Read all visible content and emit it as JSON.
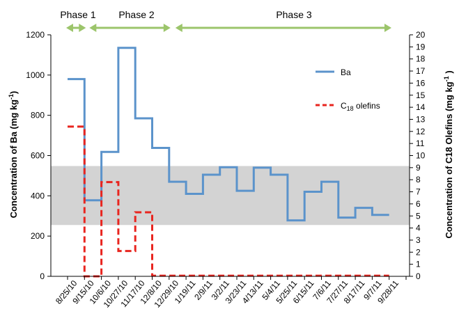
{
  "chart_data": {
    "type": "line",
    "step": true,
    "categories": [
      "8/25/10",
      "9/15/10",
      "10/6/10",
      "10/27/10",
      "11/17/10",
      "12/8/10",
      "12/29/10",
      "1/19/11",
      "2/9/11",
      "3/2/11",
      "3/23/11",
      "4/13/11",
      "5/4/11",
      "5/25/11",
      "6/15/11",
      "7/6/11",
      "7/27/11",
      "8/17/11",
      "9/7/11",
      "9/28/11"
    ],
    "y_left": {
      "label_main": "Concentration of Ba (mg kg",
      "label_sup": "-1",
      "label_end": ")",
      "lim": [
        0,
        1200
      ],
      "ticks": [
        0,
        200,
        400,
        600,
        800,
        1000,
        1200
      ]
    },
    "y_right": {
      "label_main": "Concentration of C18 Olefins (mg kg",
      "label_sup": "-1",
      "label_end": " )",
      "lim": [
        0,
        20
      ],
      "ticks": [
        0,
        1,
        2,
        3,
        4,
        5,
        6,
        7,
        8,
        9,
        10,
        11,
        12,
        13,
        14,
        15,
        16,
        17,
        18,
        19,
        20
      ]
    },
    "band": {
      "axis": "left",
      "from": 255,
      "to": 548,
      "color": "#d3d3d3"
    },
    "series": [
      {
        "name": "Ba",
        "axis": "left",
        "color": "#5b93cb",
        "style": "solid",
        "values": [
          980,
          378,
          618,
          1135,
          785,
          638,
          470,
          410,
          505,
          542,
          425,
          540,
          505,
          278,
          420,
          470,
          292,
          340,
          305,
          null
        ]
      },
      {
        "name": "C18 olefins",
        "name_main": "C",
        "name_sub": "18",
        "name_end": " olefins",
        "axis": "right",
        "color": "#e8251f",
        "style": "dashed",
        "values": [
          12.4,
          0,
          7.8,
          2.1,
          5.3,
          0.05,
          0.05,
          0.05,
          0.05,
          0.05,
          0.05,
          0.05,
          0.05,
          0.05,
          0.05,
          0.05,
          0.05,
          0.05,
          0.05,
          null
        ]
      }
    ],
    "phases": [
      {
        "label": "Phase 1",
        "from": "8/25/10",
        "to": "9/15/10"
      },
      {
        "label": "Phase 2",
        "from": "9/15/10",
        "to": "12/29/10"
      },
      {
        "label": "Phase 3",
        "from": "12/29/10",
        "to": "9/28/11"
      }
    ],
    "phase_arrow_color": "#9cc56b",
    "legend_position": "right"
  }
}
